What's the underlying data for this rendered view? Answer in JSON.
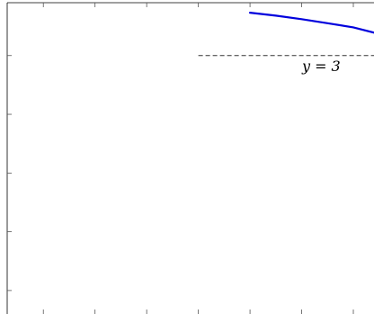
{
  "chart_data": {
    "type": "line",
    "title": "",
    "xlabel": "",
    "ylabel": "",
    "xlim": [
      -0.7,
      6.4
    ],
    "ylim": [
      -1.4,
      3.9
    ],
    "x_ticks": [
      0,
      1,
      2,
      3,
      4,
      5,
      6
    ],
    "y_ticks": [
      -1,
      0,
      1,
      2,
      3
    ],
    "grid": false,
    "legend": "none",
    "series": [
      {
        "color": "#0000dd",
        "points": [
          [
            4.0,
            3.73
          ],
          [
            4.5,
            3.68
          ],
          [
            5.0,
            3.62
          ],
          [
            5.5,
            3.55
          ],
          [
            6.0,
            3.48
          ],
          [
            6.4,
            3.39
          ]
        ]
      }
    ],
    "reference_lines": [
      {
        "y": 3,
        "x_range": [
          3.0,
          6.4
        ],
        "style": "dashed",
        "color": "#333333",
        "label": "y = 3"
      }
    ]
  }
}
